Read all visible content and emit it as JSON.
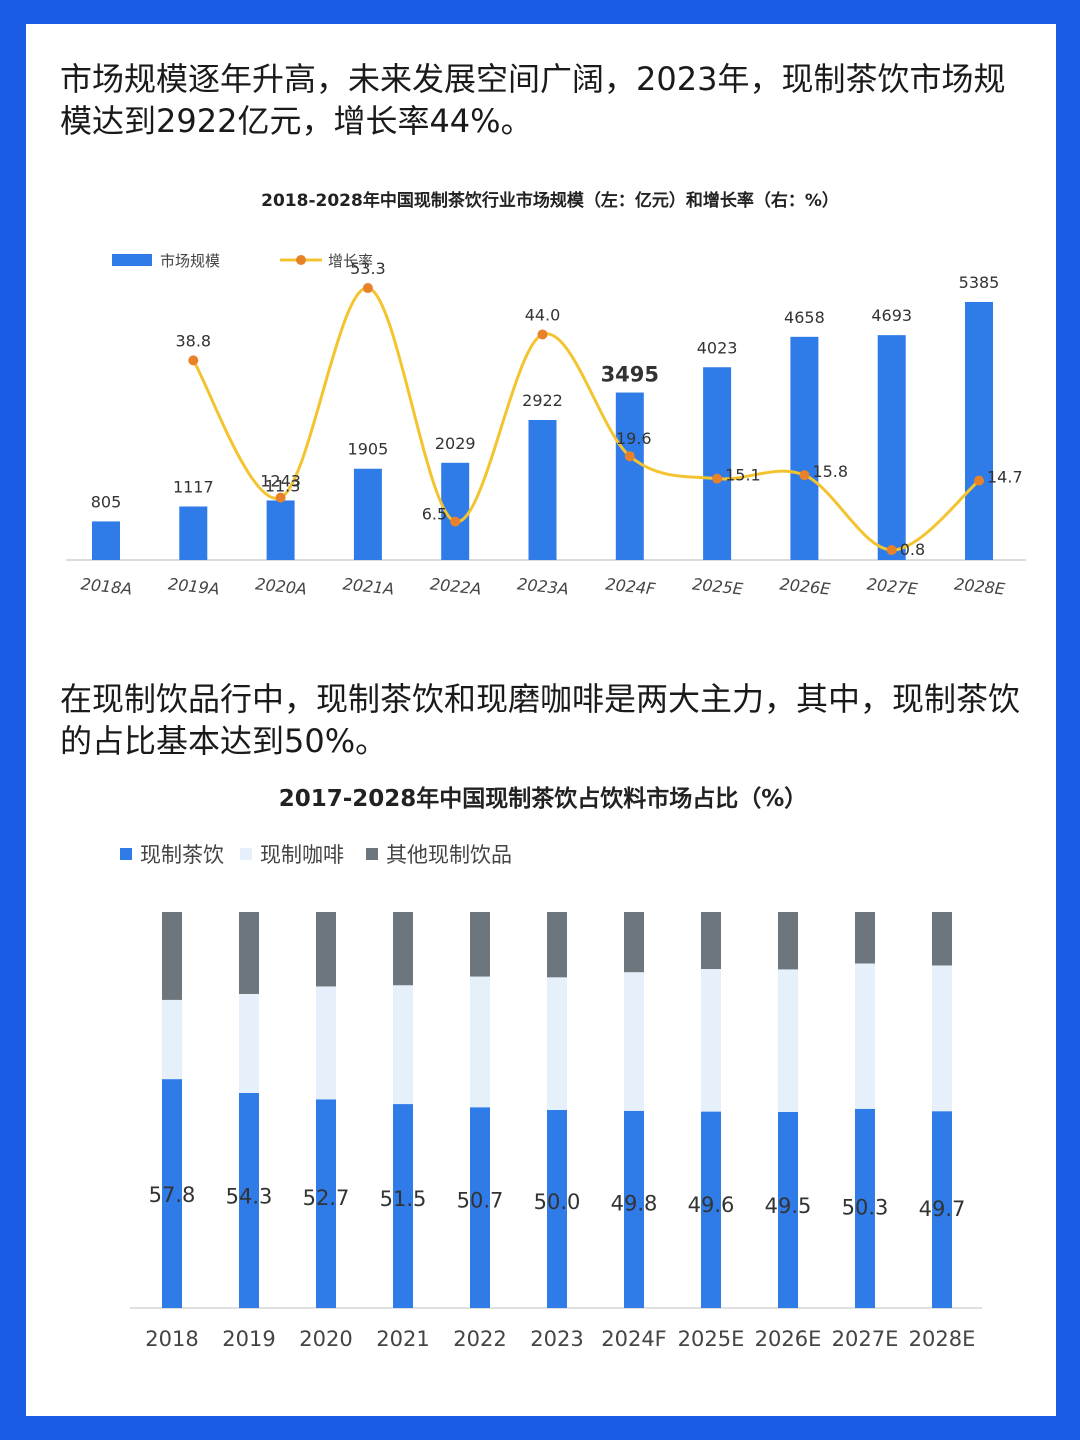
{
  "paragraphs": {
    "p1": "市场规模逐年升高，未来发展空间广阔，2023年，现制茶饮市场规模达到2922亿元，增长率44%。",
    "p2": "在现制饮品行中，现制茶饮和现磨咖啡是两大主力，其中，现制茶饮的占比基本达到50%。"
  },
  "colors": {
    "frame": "#1a5ce6",
    "bar_blue": "#2f7be8",
    "line_yellow": "#f4c430",
    "dot_orange": "#e8822a",
    "highlight_label": "#f0a830",
    "light_blue": "#e6f0fb",
    "gray": "#6e767d"
  },
  "chart_data": [
    {
      "type": "bar+line",
      "title": "2018-2028年中国现制茶饮行业市场规模（左：亿元）和增长率（右：%）",
      "categories": [
        "2018A",
        "2019A",
        "2020A",
        "2021A",
        "2022A",
        "2023A",
        "2024F",
        "2025E",
        "2026E",
        "2027E",
        "2028E"
      ],
      "series": [
        {
          "name": "市场规模",
          "kind": "bar",
          "axis": "left",
          "values": [
            805,
            1117,
            1243,
            1905,
            2029,
            2922,
            3495,
            4023,
            4658,
            4693,
            5385
          ],
          "labels": [
            "805",
            "1117",
            "1243",
            "1905",
            "2029",
            "2922",
            "3495",
            "4023",
            "4658",
            "4693",
            "5385"
          ]
        },
        {
          "name": "增长率",
          "kind": "line",
          "axis": "right",
          "values": [
            null,
            38.8,
            11.3,
            53.3,
            6.5,
            44.0,
            19.6,
            15.1,
            15.8,
            0.8,
            14.7
          ],
          "labels": [
            "",
            "38.8",
            "11.3",
            "53.3",
            "6.5",
            "44.0",
            "19.6",
            "15.1",
            "15.8",
            "0.8",
            "14.7"
          ]
        }
      ],
      "highlight_category": "2024F",
      "legend_position": "top-left",
      "grid": false
    },
    {
      "type": "bar",
      "stacked": true,
      "title": "2017-2028年中国现制茶饮占饮料市场占比（%）",
      "categories": [
        "2018",
        "2019",
        "2020",
        "2021",
        "2022",
        "2023",
        "2024F",
        "2025E",
        "2026E",
        "2027E",
        "2028E"
      ],
      "series": [
        {
          "name": "现制茶饮",
          "values": [
            57.8,
            54.3,
            52.7,
            51.5,
            50.7,
            50.0,
            49.8,
            49.6,
            49.5,
            50.3,
            49.7
          ],
          "labels": [
            "57.8",
            "54.3",
            "52.7",
            "51.5",
            "50.7",
            "50.0",
            "49.8",
            "49.6",
            "49.5",
            "50.3",
            "49.7"
          ]
        },
        {
          "name": "现制咖啡",
          "values": [
            20,
            25,
            28.5,
            30,
            33,
            33.5,
            35,
            36,
            36,
            36.7,
            36.8
          ]
        },
        {
          "name": "其他现制饮品",
          "values": [
            22.2,
            20.7,
            18.8,
            18.5,
            16.3,
            16.5,
            15.2,
            14.4,
            14.5,
            13,
            13.5
          ]
        }
      ],
      "ylim": [
        0,
        100
      ],
      "legend_position": "top-left",
      "grid": false
    }
  ]
}
